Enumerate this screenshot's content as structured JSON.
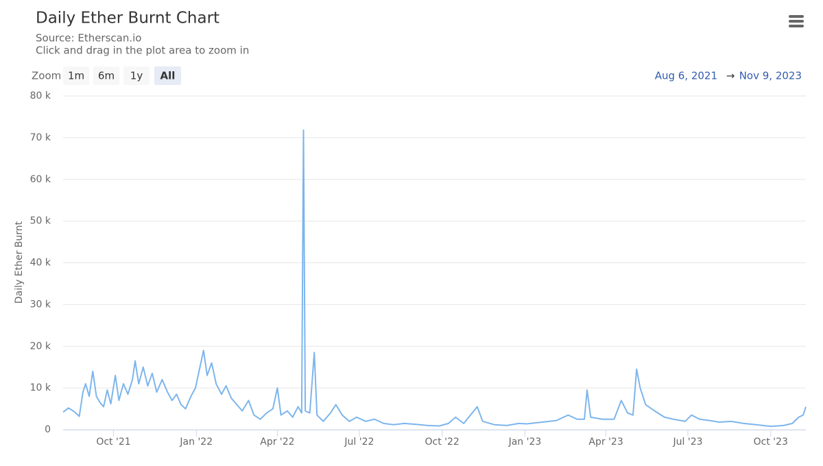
{
  "chart_data": {
    "type": "line",
    "title": "Daily Ether Burnt Chart",
    "subtitle": "Source: Etherscan.io",
    "caption": "Click and drag in the plot area to zoom in",
    "y_label": "Daily Ether Burnt",
    "range_selector": {
      "label": "Zoom",
      "buttons": [
        "1m",
        "6m",
        "1y",
        "All"
      ],
      "selected": 3
    },
    "date_range": {
      "from": "Aug 6, 2021",
      "separator": "→",
      "to": "Nov 9, 2023"
    },
    "color": "#7cb5ec",
    "grid": true,
    "xlim": [
      "2021-08-06",
      "2023-11-09"
    ],
    "xticks": [
      {
        "value": "2021-10-01",
        "label": "Oct '21"
      },
      {
        "value": "2022-01-01",
        "label": "Jan '22"
      },
      {
        "value": "2022-04-01",
        "label": "Apr '22"
      },
      {
        "value": "2022-07-01",
        "label": "Jul '22"
      },
      {
        "value": "2022-10-01",
        "label": "Oct '22"
      },
      {
        "value": "2023-01-01",
        "label": "Jan '23"
      },
      {
        "value": "2023-04-01",
        "label": "Apr '23"
      },
      {
        "value": "2023-07-01",
        "label": "Jul '23"
      },
      {
        "value": "2023-10-01",
        "label": "Oct '23"
      }
    ],
    "ylim": [
      0,
      80000
    ],
    "yticks": [
      0,
      {
        "value": 10000,
        "label": "10 k"
      },
      {
        "value": 20000,
        "label": "20 k"
      },
      {
        "value": 30000,
        "label": "30 k"
      },
      {
        "value": 40000,
        "label": "40 k"
      },
      {
        "value": 50000,
        "label": "50 k"
      },
      {
        "value": 60000,
        "label": "60 k"
      },
      {
        "value": 70000,
        "label": "70 k"
      },
      {
        "value": 80000,
        "label": "80 k"
      }
    ],
    "x": [
      "2021-08-06",
      "2021-08-12",
      "2021-08-18",
      "2021-08-24",
      "2021-08-28",
      "2021-08-31",
      "2021-09-04",
      "2021-09-08",
      "2021-09-12",
      "2021-09-16",
      "2021-09-20",
      "2021-09-24",
      "2021-09-28",
      "2021-10-03",
      "2021-10-07",
      "2021-10-12",
      "2021-10-17",
      "2021-10-22",
      "2021-10-25",
      "2021-10-29",
      "2021-11-03",
      "2021-11-08",
      "2021-11-13",
      "2021-11-18",
      "2021-11-24",
      "2021-11-30",
      "2021-12-05",
      "2021-12-10",
      "2021-12-15",
      "2021-12-20",
      "2021-12-26",
      "2021-12-31",
      "2022-01-04",
      "2022-01-09",
      "2022-01-13",
      "2022-01-18",
      "2022-01-23",
      "2022-01-29",
      "2022-02-03",
      "2022-02-09",
      "2022-02-15",
      "2022-02-21",
      "2022-02-28",
      "2022-03-06",
      "2022-03-13",
      "2022-03-20",
      "2022-03-27",
      "2022-04-01",
      "2022-04-05",
      "2022-04-12",
      "2022-04-18",
      "2022-04-24",
      "2022-04-28",
      "2022-04-30",
      "2022-05-02",
      "2022-05-07",
      "2022-05-12",
      "2022-05-15",
      "2022-05-22",
      "2022-05-30",
      "2022-06-05",
      "2022-06-12",
      "2022-06-20",
      "2022-06-28",
      "2022-07-08",
      "2022-07-18",
      "2022-07-28",
      "2022-08-08",
      "2022-08-20",
      "2022-09-01",
      "2022-09-15",
      "2022-09-28",
      "2022-10-08",
      "2022-10-16",
      "2022-10-25",
      "2022-11-09",
      "2022-11-15",
      "2022-11-28",
      "2022-12-12",
      "2022-12-25",
      "2023-01-03",
      "2023-01-20",
      "2023-02-05",
      "2023-02-18",
      "2023-02-28",
      "2023-03-08",
      "2023-03-11",
      "2023-03-15",
      "2023-03-28",
      "2023-04-10",
      "2023-04-18",
      "2023-04-25",
      "2023-05-01",
      "2023-05-05",
      "2023-05-09",
      "2023-05-15",
      "2023-05-25",
      "2023-06-05",
      "2023-06-15",
      "2023-06-28",
      "2023-07-05",
      "2023-07-14",
      "2023-07-25",
      "2023-08-05",
      "2023-08-18",
      "2023-09-01",
      "2023-09-15",
      "2023-10-01",
      "2023-10-15",
      "2023-10-25",
      "2023-11-01",
      "2023-11-06",
      "2023-11-09"
    ],
    "values": [
      4200,
      5200,
      4400,
      3200,
      9000,
      11000,
      8000,
      14000,
      8000,
      6500,
      5500,
      9500,
      6200,
      13000,
      7000,
      11000,
      8500,
      12000,
      16500,
      11000,
      15000,
      10500,
      13500,
      9000,
      12000,
      9000,
      7000,
      8500,
      6000,
      5000,
      8000,
      10000,
      14000,
      19000,
      13000,
      16000,
      11000,
      8500,
      10500,
      7500,
      6000,
      4500,
      7000,
      3500,
      2500,
      4000,
      5000,
      10000,
      3500,
      4500,
      3000,
      5500,
      4000,
      71800,
      4500,
      4000,
      18500,
      3500,
      2000,
      4000,
      6000,
      3500,
      2000,
      3000,
      2000,
      2500,
      1500,
      1200,
      1500,
      1300,
      1000,
      900,
      1500,
      3000,
      1500,
      5500,
      2000,
      1200,
      1000,
      1500,
      1400,
      1800,
      2200,
      3500,
      2500,
      2500,
      9500,
      3000,
      2500,
      2500,
      7000,
      4000,
      3500,
      14500,
      10000,
      6000,
      4500,
      3000,
      2500,
      2000,
      3500,
      2500,
      2200,
      1800,
      2000,
      1500,
      1200,
      800,
      1000,
      1500,
      3000,
      3500,
      5500
    ]
  }
}
